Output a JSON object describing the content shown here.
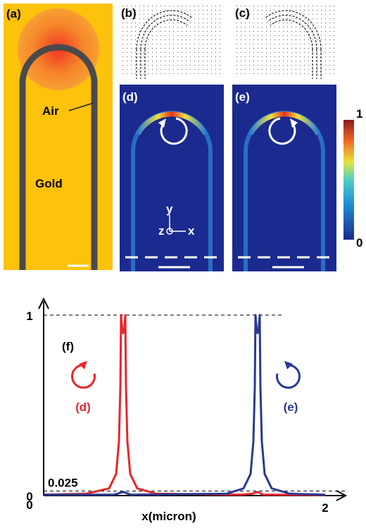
{
  "panels": {
    "a": {
      "label": "(a)",
      "air": "Air",
      "gold": "Gold"
    },
    "b": {
      "label": "(b)"
    },
    "c": {
      "label": "(c)"
    },
    "d": {
      "label": "(d)",
      "axes": {
        "y": "y",
        "z": "z",
        "x": "x"
      }
    },
    "e": {
      "label": "(e)"
    }
  },
  "colorbar": {
    "max": 1,
    "min": 0
  },
  "chart_data": {
    "type": "line",
    "label": "(f)",
    "xlabel": "x(micron)",
    "xlim": [
      0,
      2
    ],
    "xticks": [
      0,
      2
    ],
    "ylim": [
      0,
      1
    ],
    "yticks": [
      0,
      1
    ],
    "reference_lines": [
      1,
      0.025
    ],
    "series": [
      {
        "name": "(d)",
        "color": "#e8252b",
        "x": [
          0,
          0.3,
          0.465,
          0.515,
          0.535,
          0.545,
          0.55,
          0.558,
          0.565,
          0.572,
          0.58,
          0.585,
          0.595,
          0.615,
          0.665,
          0.8,
          1.4,
          1.48,
          1.52,
          1.56,
          2
        ],
        "values": [
          0.005,
          0.01,
          0.04,
          0.12,
          0.3,
          0.6,
          1.0,
          0.92,
          0.9,
          0.92,
          1.0,
          0.6,
          0.3,
          0.12,
          0.04,
          0.01,
          0.005,
          0.01,
          0.02,
          0.005,
          0.003
        ]
      },
      {
        "name": "(e)",
        "color": "#2b3990",
        "x": [
          0,
          0.5,
          0.565,
          0.62,
          1.3,
          1.42,
          1.47,
          1.49,
          1.5,
          1.505,
          1.513,
          1.52,
          1.527,
          1.535,
          1.54,
          1.55,
          1.57,
          1.62,
          1.75,
          2
        ],
        "values": [
          0.005,
          0.005,
          0.02,
          0.005,
          0.01,
          0.04,
          0.12,
          0.3,
          0.6,
          1.0,
          0.92,
          0.9,
          0.92,
          1.0,
          0.6,
          0.3,
          0.12,
          0.04,
          0.01,
          0.005
        ]
      }
    ]
  }
}
